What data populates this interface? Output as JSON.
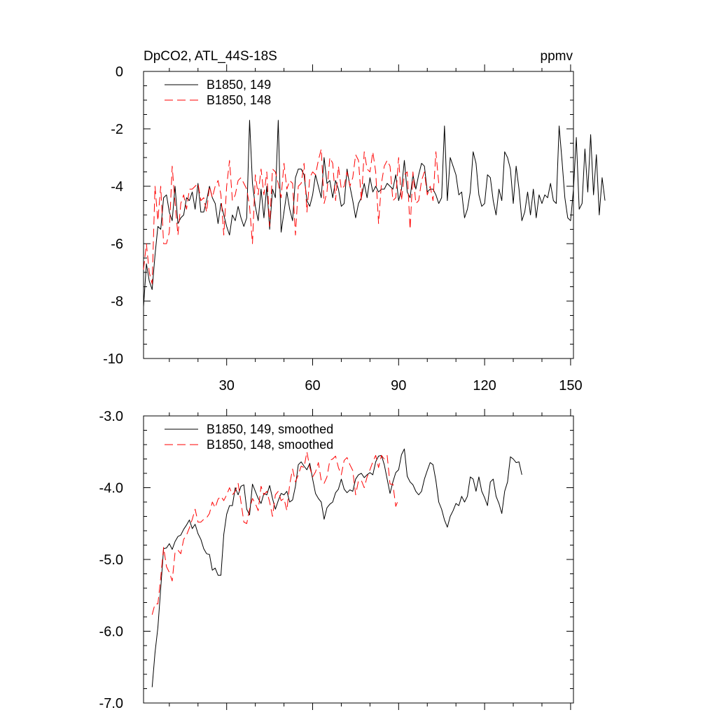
{
  "chart_data": [
    {
      "type": "line",
      "title": "DpCO2, ATL_44S-18S",
      "units": "ppmv",
      "xlabel": "",
      "ylabel": "",
      "xlim": [
        1,
        151
      ],
      "ylim": [
        -10,
        0
      ],
      "xticks": [
        30,
        60,
        90,
        120,
        150
      ],
      "xtick_labels": [
        "30",
        "60",
        "90",
        "120",
        "150"
      ],
      "yticks": [
        0,
        -2,
        -4,
        -6,
        -8,
        -10
      ],
      "ytick_labels": [
        "0",
        "-2",
        "-4",
        "-6",
        "-8",
        "-10"
      ],
      "grid": false,
      "legend": "top-left",
      "series": [
        {
          "name": "B1850, 149",
          "color": "#000000",
          "style": "solid",
          "x_start": 1,
          "values": [
            -8.2,
            -6.7,
            -7.3,
            -7.6,
            -6.4,
            -5.4,
            -5.5,
            -4.4,
            -4.3,
            -4.9,
            -5.2,
            -4.0,
            -5.3,
            -5.1,
            -5.0,
            -4.4,
            -4.5,
            -4.2,
            -4.8,
            -3.9,
            -4.9,
            -4.9,
            -4.5,
            -4.0,
            -4.4,
            -4.6,
            -5.3,
            -4.6,
            -5.0,
            -5.4,
            -5.7,
            -5.0,
            -5.2,
            -4.7,
            -5.1,
            -5.4,
            -5.1,
            -1.7,
            -3.9,
            -4.7,
            -5.2,
            -4.1,
            -5.1,
            -4.0,
            -5.5,
            -4.1,
            -4.4,
            -1.7,
            -5.6,
            -4.9,
            -4.2,
            -4.8,
            -5.2,
            -3.7,
            -3.4,
            -3.4,
            -3.6,
            -4.5,
            -4.7,
            -4.3,
            -3.6,
            -4.0,
            -4.4,
            -3.0,
            -3.9,
            -3.8,
            -4.4,
            -3.8,
            -4.1,
            -4.7,
            -4.6,
            -3.4,
            -4.0,
            -4.5,
            -5.1,
            -4.6,
            -4.4,
            -3.9,
            -4.4,
            -3.7,
            -4.2,
            -4.0,
            -4.2,
            -4.1,
            -4.1,
            -3.9,
            -4.0,
            -4.1,
            -3.6,
            -4.5,
            -4.1,
            -3.1,
            -4.2,
            -4.4,
            -3.6,
            -4.1,
            -3.6,
            -3.2,
            -3.3,
            -4.2,
            -4.1,
            -4.1,
            -4.3,
            -4.6,
            -4.4,
            -1.9,
            -4.5,
            -3.0,
            -3.3,
            -3.6,
            -4.3,
            -4.2,
            -5.1,
            -4.8,
            -4.2,
            -2.8,
            -3.2,
            -4.3,
            -4.7,
            -4.6,
            -3.6,
            -3.7,
            -4.5,
            -5.0,
            -4.1,
            -4.5,
            -2.8,
            -3.0,
            -3.4,
            -4.6,
            -3.3,
            -4.1,
            -5.2,
            -4.9,
            -4.2,
            -5.0,
            -4.1,
            -5.1,
            -4.3,
            -4.6,
            -4.3,
            -4.4,
            -3.9,
            -4.5,
            -4.6,
            -1.9,
            -3.1,
            -4.4,
            -5.1,
            -5.2,
            -4.1,
            -2.3,
            -4.8,
            -4.6,
            -2.7,
            -4.2,
            -2.2,
            -4.3,
            -2.9,
            -5.0,
            -3.7,
            -4.5
          ]
        },
        {
          "name": "B1850, 148",
          "color": "#ff0000",
          "style": "dashed",
          "x_start": 1,
          "values": [
            -6.9,
            -6.0,
            -7.0,
            -7.4,
            -4.0,
            -5.2,
            -4.0,
            -6.0,
            -6.0,
            -5.6,
            -3.3,
            -4.6,
            -5.7,
            -4.6,
            -4.3,
            -4.8,
            -4.1,
            -4.1,
            -4.0,
            -3.9,
            -4.5,
            -4.4,
            -4.9,
            -4.0,
            -4.4,
            -4.0,
            -3.8,
            -4.3,
            -5.7,
            -4.0,
            -3.1,
            -4.5,
            -4.3,
            -3.8,
            -3.7,
            -3.9,
            -4.1,
            -4.7,
            -6.0,
            -3.6,
            -4.3,
            -3.4,
            -4.3,
            -3.5,
            -5.4,
            -3.4,
            -3.5,
            -3.9,
            -4.4,
            -3.2,
            -4.1,
            -3.8,
            -3.9,
            -5.7,
            -4.0,
            -3.9,
            -3.2,
            -4.9,
            -3.7,
            -3.5,
            -3.6,
            -3.1,
            -2.7,
            -4.6,
            -4.2,
            -3.0,
            -3.2,
            -4.5,
            -3.3,
            -4.1,
            -4.0,
            -3.5,
            -4.0,
            -3.7,
            -2.9,
            -3.1,
            -4.5,
            -2.8,
            -3.4,
            -3.5,
            -2.8,
            -3.5,
            -5.3,
            -3.9,
            -3.3,
            -3.1,
            -3.3,
            -4.5,
            -4.4,
            -3.0,
            -4.5,
            -3.6,
            -3.5,
            -5.5,
            -3.5,
            -4.6,
            -4.5,
            -3.8,
            -3.5,
            -4.3,
            -4.0,
            -4.5,
            -2.8,
            -3.9
          ]
        }
      ]
    },
    {
      "type": "line",
      "title": "",
      "xlabel": "",
      "ylabel": "",
      "xlim": [
        1,
        151
      ],
      "ylim": [
        -7.0,
        -3.0
      ],
      "xticks": [
        30,
        60,
        90,
        120,
        150
      ],
      "yticks": [
        -3.0,
        -4.0,
        -5.0,
        -6.0,
        -7.0
      ],
      "ytick_labels": [
        "-3.0",
        "-4.0",
        "-5.0",
        "-6.0",
        "-7.0"
      ],
      "grid": false,
      "legend": "top-left",
      "series": [
        {
          "name": "B1850, 149, smoothed",
          "color": "#000000",
          "style": "solid",
          "x_start": 4,
          "values": [
            -6.78,
            -6.3,
            -5.95,
            -5.4,
            -4.85,
            -4.84,
            -4.78,
            -4.86,
            -4.75,
            -4.68,
            -4.66,
            -4.58,
            -4.52,
            -4.45,
            -4.57,
            -4.51,
            -4.64,
            -4.72,
            -4.85,
            -4.92,
            -4.93,
            -5.15,
            -5.12,
            -5.22,
            -5.22,
            -4.65,
            -4.37,
            -4.25,
            -4.25,
            -4.0,
            -4.1,
            -3.98,
            -3.96,
            -4.3,
            -4.38,
            -3.95,
            -4.05,
            -4.15,
            -4.22,
            -4.08,
            -4.1,
            -3.97,
            -4.15,
            -4.3,
            -4.18,
            -4.08,
            -4.1,
            -4.05,
            -4.2,
            -4.17,
            -3.98,
            -3.68,
            -3.64,
            -3.7,
            -3.75,
            -3.66,
            -3.88,
            -4.08,
            -4.15,
            -4.2,
            -4.44,
            -4.28,
            -4.23,
            -4.2,
            -4.07,
            -4.02,
            -3.88,
            -4.02,
            -4.07,
            -4.03,
            -4.05,
            -3.88,
            -3.82,
            -3.8,
            -3.86,
            -3.82,
            -3.79,
            -3.82,
            -3.64,
            -3.56,
            -3.55,
            -3.68,
            -3.88,
            -4.08,
            -3.92,
            -3.79,
            -3.75,
            -3.54,
            -3.46,
            -3.84,
            -3.92,
            -3.96,
            -4.05,
            -4.1,
            -4.05,
            -3.88,
            -3.76,
            -3.65,
            -3.68,
            -3.9,
            -4.2,
            -4.3,
            -4.45,
            -4.55,
            -4.4,
            -4.32,
            -4.22,
            -4.25,
            -4.12,
            -4.2,
            -4.12,
            -3.85,
            -3.88,
            -4.05,
            -3.85,
            -4.05,
            -4.14,
            -4.25,
            -3.92,
            -3.88,
            -4.12,
            -4.22,
            -4.36,
            -4.05,
            -3.92,
            -3.57,
            -3.6,
            -3.65,
            -3.64,
            -3.82
          ]
        },
        {
          "name": "B1850, 148, smoothed",
          "color": "#ff0000",
          "style": "dashed",
          "x_start": 4,
          "values": [
            -5.77,
            -5.62,
            -5.62,
            -5.25,
            -4.83,
            -5.1,
            -5.18,
            -5.3,
            -4.9,
            -4.87,
            -4.92,
            -4.72,
            -4.66,
            -4.56,
            -4.44,
            -4.3,
            -4.48,
            -4.48,
            -4.44,
            -4.42,
            -4.36,
            -4.2,
            -4.28,
            -4.16,
            -4.12,
            -4.18,
            -4.1,
            -4.0,
            -4.1,
            -4.05,
            -3.94,
            -4.2,
            -4.48,
            -4.5,
            -4.3,
            -4.15,
            -4.22,
            -4.32,
            -3.98,
            -4.1,
            -4.05,
            -4.2,
            -4.4,
            -4.1,
            -4.05,
            -4.18,
            -4.15,
            -4.32,
            -3.95,
            -3.74,
            -3.92,
            -3.82,
            -3.7,
            -3.72,
            -3.5,
            -3.72,
            -3.85,
            -3.78,
            -3.65,
            -3.9,
            -3.94,
            -3.85,
            -3.62,
            -3.6,
            -3.56,
            -3.72,
            -3.82,
            -3.62,
            -3.58,
            -3.68,
            -3.76,
            -4.1,
            -3.9,
            -3.9,
            -4.0,
            -3.85,
            -3.75,
            -3.64,
            -3.55,
            -3.72,
            -3.55,
            -3.6,
            -3.55,
            -3.95,
            -3.95,
            -4.26,
            -4.16
          ]
        }
      ]
    }
  ]
}
